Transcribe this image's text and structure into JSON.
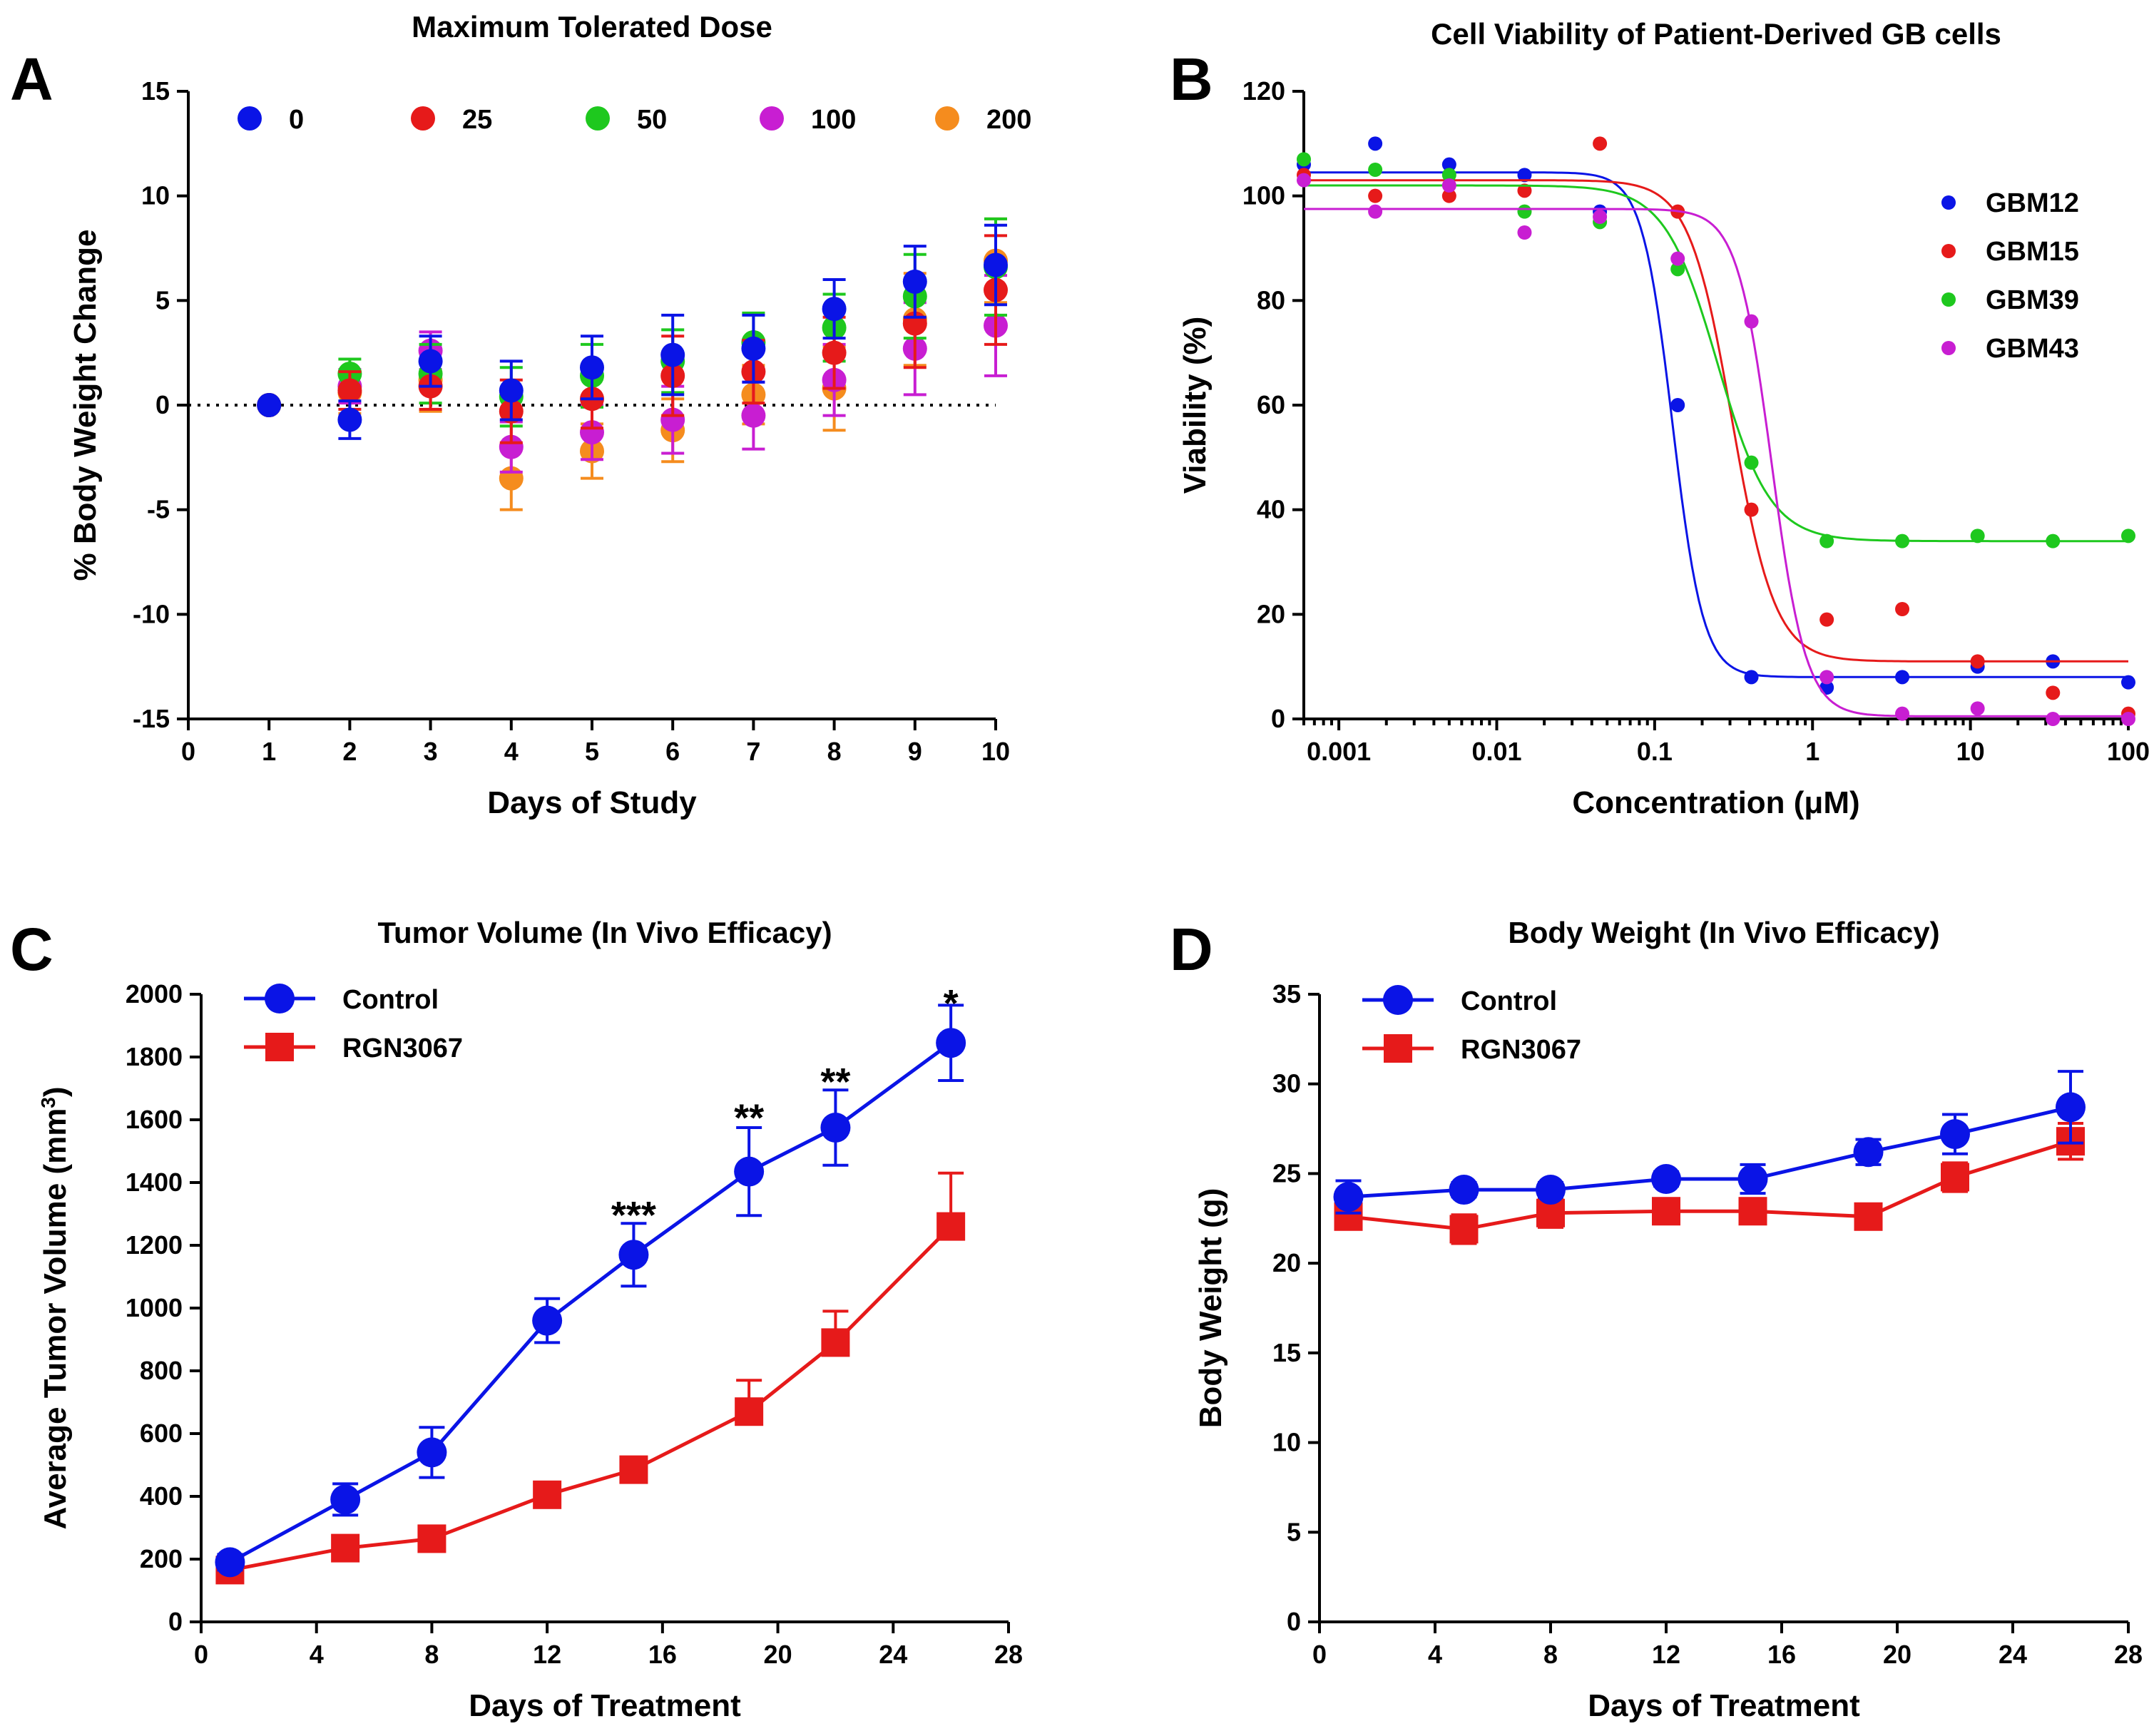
{
  "colors": {
    "blue": "#0a14e6",
    "red": "#e61a1a",
    "green": "#1ec81e",
    "magenta": "#c81ed2",
    "orange": "#f58c1e",
    "axis": "#000000"
  },
  "chart_data": [
    {
      "id": "A",
      "type": "scatter",
      "panel_label": "A",
      "title": "Maximum Tolerated Dose",
      "xlabel": "Days of Study",
      "ylabel": "% Body Weight Change",
      "xlim": [
        0,
        10
      ],
      "ylim": [
        -15,
        15
      ],
      "xticks": [
        0,
        1,
        2,
        3,
        4,
        5,
        6,
        7,
        8,
        9,
        10
      ],
      "yticks": [
        -15,
        -10,
        -5,
        0,
        5,
        10,
        15
      ],
      "legend_position": "top",
      "reference_line": 0,
      "x": [
        1,
        2,
        3,
        4,
        5,
        6,
        7,
        8,
        9,
        10
      ],
      "series": [
        {
          "name": "0",
          "color": "#0a14e6",
          "values": [
            0,
            -0.7,
            2.1,
            0.7,
            1.8,
            2.4,
            2.7,
            4.6,
            5.9,
            6.7
          ],
          "errors": [
            0,
            0.9,
            1.2,
            1.4,
            1.5,
            1.9,
            1.6,
            1.4,
            1.7,
            1.9
          ]
        },
        {
          "name": "25",
          "color": "#e61a1a",
          "values": [
            0,
            0.7,
            0.9,
            -0.3,
            0.3,
            1.4,
            1.6,
            2.5,
            3.9,
            5.5
          ],
          "errors": [
            0,
            0.9,
            1.1,
            1.5,
            1.4,
            1.9,
            1.5,
            1.7,
            2.1,
            2.6
          ]
        },
        {
          "name": "50",
          "color": "#1ec81e",
          "values": [
            0,
            1.5,
            1.5,
            0.4,
            1.4,
            2.1,
            3.0,
            3.7,
            5.2,
            6.6
          ],
          "errors": [
            0,
            0.7,
            1.4,
            1.4,
            1.5,
            1.5,
            1.4,
            1.6,
            2.0,
            2.3
          ]
        },
        {
          "name": "100",
          "color": "#c81ed2",
          "values": [
            0,
            0.9,
            2.6,
            -2.0,
            -1.3,
            -0.7,
            -0.5,
            1.2,
            2.7,
            3.8
          ],
          "errors": [
            0,
            0.8,
            0.9,
            1.2,
            1.3,
            1.6,
            1.6,
            1.7,
            2.2,
            2.4
          ]
        },
        {
          "name": "200",
          "color": "#f58c1e",
          "values": [
            0,
            0.6,
            1.2,
            -3.5,
            -2.2,
            -1.2,
            0.5,
            0.8,
            4.1,
            6.9
          ],
          "errors": [
            0,
            1.0,
            1.5,
            1.5,
            1.3,
            1.5,
            1.4,
            2.0,
            2.2,
            2.0
          ]
        }
      ]
    },
    {
      "id": "B",
      "type": "scatter",
      "panel_label": "B",
      "title": "Cell Viability of Patient-Derived GB cells",
      "xlabel": "Concentration (μM)",
      "ylabel": "Viability (%)",
      "xscale": "log",
      "xlim": [
        0.0006,
        100
      ],
      "ylim": [
        0,
        120
      ],
      "xticks": [
        0.001,
        0.01,
        0.1,
        1,
        10,
        100
      ],
      "xticklabels": [
        "0.001",
        "0.01",
        "0.1",
        "1",
        "10",
        "100"
      ],
      "yticks": [
        0,
        20,
        40,
        60,
        80,
        100,
        120
      ],
      "legend_position": "right",
      "x": [
        0.0006,
        0.0017,
        0.005,
        0.015,
        0.045,
        0.14,
        0.41,
        1.23,
        3.7,
        11.1,
        33.3,
        100
      ],
      "series": [
        {
          "name": "GBM12",
          "color": "#0a14e6",
          "values": [
            106,
            110,
            106,
            104,
            97,
            60,
            8,
            6,
            8,
            10,
            11,
            7
          ],
          "fit": {
            "top": 104.5,
            "bottom": 8,
            "ic50": 0.13,
            "hill": 4.5
          }
        },
        {
          "name": "GBM15",
          "color": "#e61a1a",
          "values": [
            104,
            100,
            100,
            101,
            110,
            97,
            40,
            19,
            21,
            11,
            5,
            1
          ],
          "fit": {
            "top": 103,
            "bottom": 11,
            "ic50": 0.31,
            "hill": 3.2
          }
        },
        {
          "name": "GBM39",
          "color": "#1ec81e",
          "values": [
            107,
            105,
            104,
            97,
            95,
            86,
            49,
            34,
            34,
            35,
            34,
            35
          ],
          "fit": {
            "top": 102,
            "bottom": 34,
            "ic50": 0.25,
            "hill": 2.6
          }
        },
        {
          "name": "GBM43",
          "color": "#c81ed2",
          "values": [
            103,
            97,
            102,
            93,
            96,
            88,
            76,
            8,
            1,
            2,
            0,
            0
          ],
          "fit": {
            "top": 97.5,
            "bottom": 0.5,
            "ic50": 0.55,
            "hill": 4.0
          }
        }
      ]
    },
    {
      "id": "C",
      "type": "line",
      "panel_label": "C",
      "title": "Tumor Volume  (In Vivo Efficacy)",
      "xlabel": "Days of Treatment",
      "ylabel": "Average Tumor Volume  (mm",
      "ylabel_sup": "3",
      "ylabel_end": ")",
      "xlim": [
        0,
        28
      ],
      "ylim": [
        0,
        2000
      ],
      "xticks": [
        0,
        4,
        8,
        12,
        16,
        20,
        24,
        28
      ],
      "yticks": [
        0,
        200,
        400,
        600,
        800,
        1000,
        1200,
        1400,
        1600,
        1800,
        2000
      ],
      "legend_position": "top-left",
      "x": [
        1,
        5,
        8,
        12,
        15,
        19,
        22,
        26
      ],
      "series": [
        {
          "name": "Control",
          "marker": "circle",
          "color": "#0a14e6",
          "values": [
            190,
            390,
            540,
            960,
            1170,
            1435,
            1575,
            1845
          ],
          "errors": [
            25,
            50,
            80,
            70,
            100,
            140,
            120,
            120
          ]
        },
        {
          "name": "RGN3067",
          "marker": "square",
          "color": "#e61a1a",
          "values": [
            165,
            235,
            265,
            405,
            485,
            670,
            890,
            1260
          ],
          "errors": [
            15,
            20,
            25,
            30,
            25,
            100,
            100,
            170
          ]
        }
      ],
      "annotations": [
        {
          "x": 15,
          "y": 1300,
          "text": "***"
        },
        {
          "x": 19,
          "y": 1610,
          "text": "**"
        },
        {
          "x": 22,
          "y": 1725,
          "text": "**"
        },
        {
          "x": 26,
          "y": 1975,
          "text": "*"
        }
      ]
    },
    {
      "id": "D",
      "type": "line",
      "panel_label": "D",
      "title": "Body Weight (In Vivo Efficacy)",
      "xlabel": "Days of Treatment",
      "ylabel": "Body Weight (g)",
      "xlim": [
        0,
        28
      ],
      "ylim": [
        0,
        35
      ],
      "xticks": [
        0,
        4,
        8,
        12,
        16,
        20,
        24,
        28
      ],
      "yticks": [
        0,
        5,
        10,
        15,
        20,
        25,
        30,
        35
      ],
      "legend_position": "top-left",
      "x": [
        1,
        5,
        8,
        12,
        15,
        19,
        22,
        26
      ],
      "series": [
        {
          "name": "Control",
          "marker": "circle",
          "color": "#0a14e6",
          "values": [
            23.7,
            24.1,
            24.1,
            24.7,
            24.7,
            26.2,
            27.2,
            28.7
          ],
          "errors": [
            0.9,
            0.4,
            0.4,
            0.4,
            0.8,
            0.7,
            1.1,
            2.0
          ]
        },
        {
          "name": "RGN3067",
          "marker": "square",
          "color": "#e61a1a",
          "values": [
            22.6,
            21.9,
            22.8,
            22.9,
            22.9,
            22.6,
            24.8,
            26.8
          ],
          "errors": [
            0.6,
            0.8,
            0.8,
            0.7,
            0.7,
            0.7,
            0.8,
            1.0
          ]
        }
      ]
    }
  ]
}
